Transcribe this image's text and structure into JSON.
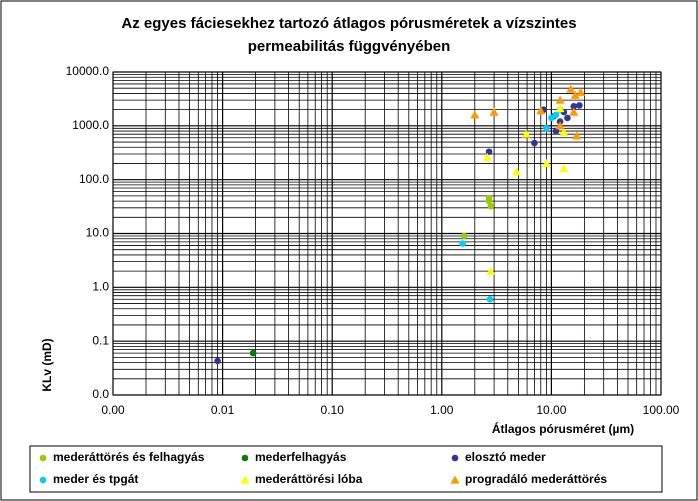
{
  "chart_data": {
    "type": "scatter",
    "title": [
      "Az egyes fáciesekhez tartozó átlagos pórusméretek a vízszintes",
      "permeabilitás függvényében"
    ],
    "x_label": "Átlagos pórusméret (µm)",
    "y_label": "KLv (mD)",
    "log_x": true,
    "log_y": true,
    "grid": true,
    "xlim": [
      0.001,
      100
    ],
    "ylim": [
      0.01,
      10000
    ],
    "xticks": [
      {
        "value": 0.001,
        "label": "0.00"
      },
      {
        "value": 0.01,
        "label": "0.01"
      },
      {
        "value": 0.1,
        "label": "0.10"
      },
      {
        "value": 1,
        "label": "1.00"
      },
      {
        "value": 10,
        "label": "10.00"
      },
      {
        "value": 100,
        "label": "100.00"
      }
    ],
    "yticks": [
      {
        "value": 0.01,
        "label": "0.0"
      },
      {
        "value": 0.1,
        "label": "0.1"
      },
      {
        "value": 1,
        "label": "1.0"
      },
      {
        "value": 10,
        "label": "10.0"
      },
      {
        "value": 100,
        "label": "100.0"
      },
      {
        "value": 1000,
        "label": "1000.0"
      },
      {
        "value": 10000,
        "label": "10000.0"
      }
    ],
    "legend": "bottom",
    "series": [
      {
        "name": "mederáttörés és felhagyás",
        "color": "#99cc00",
        "marker": "circle",
        "x": [
          1.6,
          2.7,
          2.8,
          2.7
        ],
        "values": [
          9,
          45,
          32,
          40
        ]
      },
      {
        "name": "mederfelhagyás",
        "color": "#008000",
        "marker": "circle",
        "x": [
          0.019
        ],
        "values": [
          0.06
        ]
      },
      {
        "name": "elosztó meder",
        "color": "#333399",
        "marker": "circle",
        "x": [
          0.009,
          2.7,
          7,
          8.5,
          10.5,
          11,
          12,
          13,
          14,
          16,
          18
        ],
        "values": [
          0.043,
          330,
          480,
          2000,
          1500,
          800,
          1200,
          1800,
          1400,
          2300,
          2400
        ]
      },
      {
        "name": "meder és tpgát",
        "color": "#00ccff",
        "marker": "circle",
        "x": [
          1.55,
          2.75,
          9,
          10,
          11,
          12
        ],
        "values": [
          6.5,
          0.6,
          900,
          1400,
          1600,
          2000
        ]
      },
      {
        "name": "mederáttörési lóba",
        "color": "#ffff00",
        "marker": "triangle",
        "x": [
          2.6,
          2.8,
          4.8,
          5.9,
          9,
          13,
          13,
          12
        ],
        "values": [
          260,
          2.0,
          140,
          700,
          200,
          750,
          160,
          2100
        ]
      },
      {
        "name": "progradáló mederáttörés",
        "color": "#ff9900",
        "marker": "triangle",
        "x": [
          2,
          3,
          8,
          12,
          15,
          16.5,
          17,
          18.5,
          12,
          16
        ],
        "values": [
          1600,
          1800,
          1900,
          3000,
          4800,
          3700,
          650,
          4200,
          1000,
          1800
        ]
      }
    ]
  }
}
